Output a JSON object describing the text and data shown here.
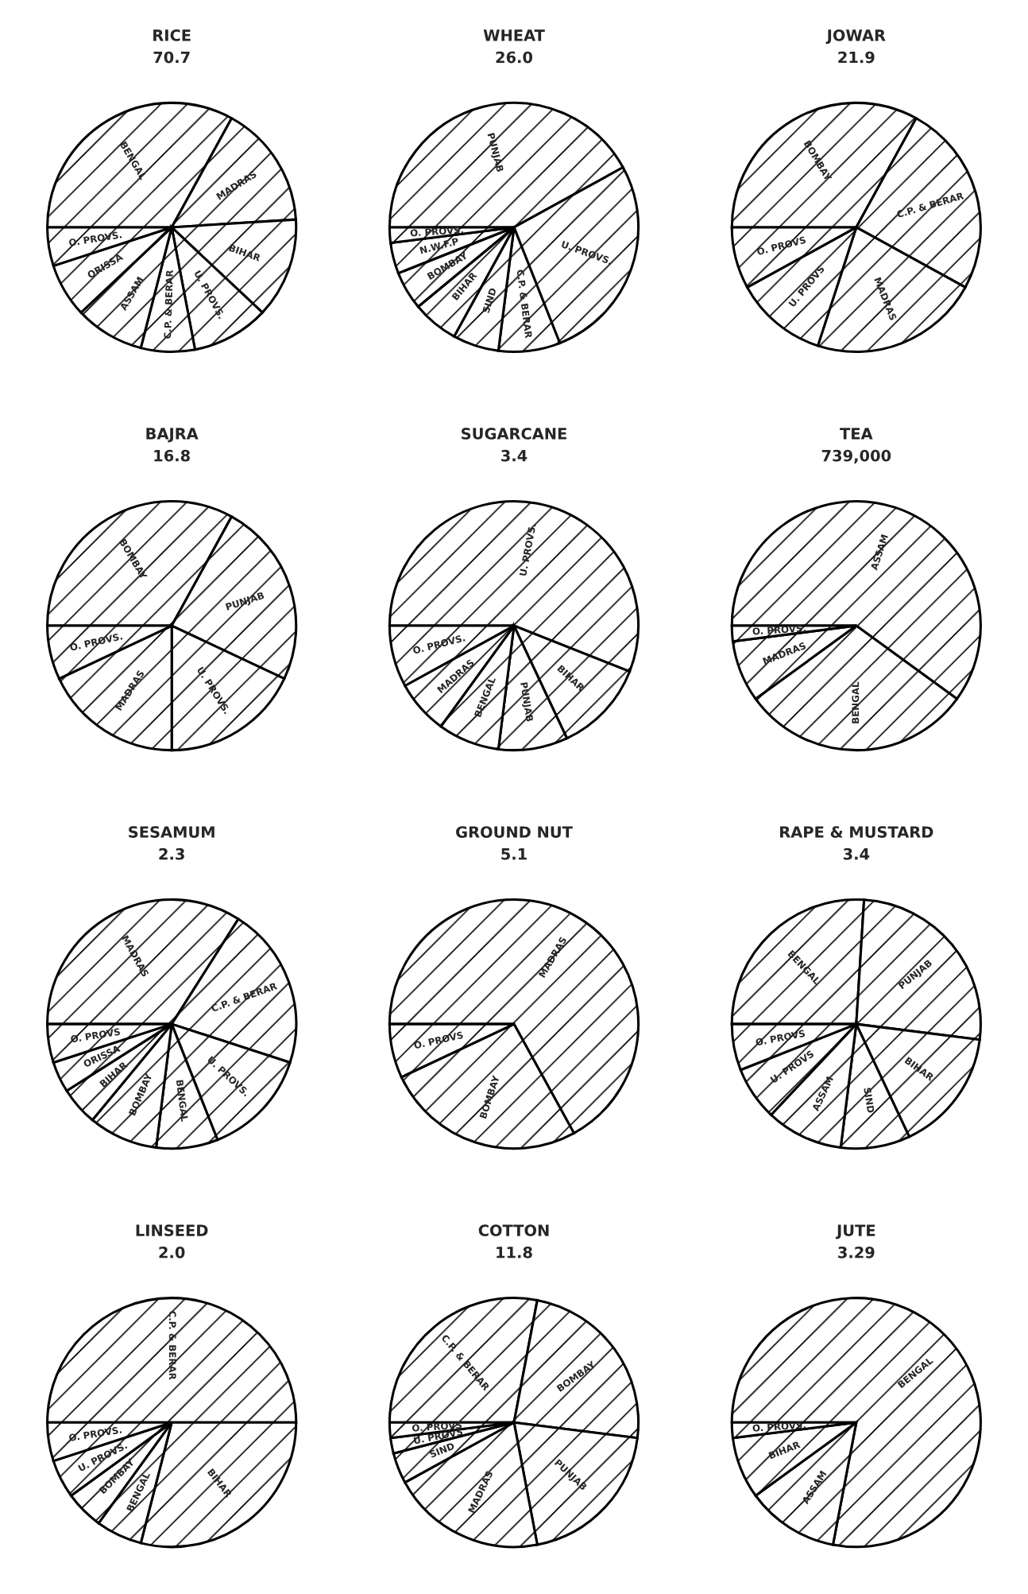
{
  "chart_data": [
    {
      "type": "pie",
      "title": "RICE",
      "subtitle": "70.7",
      "categories": [
        "BENGAL",
        "MADRAS",
        "BIHAR",
        "U. PROVS.",
        "C.P. & BERAR",
        "ASSAM",
        "ORISSA",
        "O. PROVS."
      ],
      "values": [
        33,
        16,
        13,
        10,
        7,
        9,
        7,
        5
      ]
    },
    {
      "type": "pie",
      "title": "WHEAT",
      "subtitle": "26.0",
      "categories": [
        "PUNJAB",
        "U. PROVS.",
        "C.P. & BERAR",
        "SIND",
        "BIHAR",
        "BOMBAY",
        "N.W.F.P",
        "O. PROVS."
      ],
      "values": [
        42,
        27,
        8,
        6,
        6,
        5,
        4,
        2
      ]
    },
    {
      "type": "pie",
      "title": "JOWAR",
      "subtitle": "21.9",
      "categories": [
        "BOMBAY",
        "C.P. & BERAR",
        "MADRAS",
        "U. PROVS",
        "O. PROVS"
      ],
      "values": [
        33,
        25,
        22,
        12,
        8
      ]
    },
    {
      "type": "pie",
      "title": "BAJRA",
      "subtitle": "16.8",
      "categories": [
        "BOMBAY",
        "PUNJAB",
        "U. PROVS.",
        "MADRAS",
        "O. PROVS."
      ],
      "values": [
        33,
        24,
        18,
        18,
        7
      ]
    },
    {
      "type": "pie",
      "title": "SUGARCANE",
      "subtitle": "3.4",
      "categories": [
        "U. PROVS.",
        "BIHAR",
        "PUNJAB",
        "BENGAL",
        "MADRAS",
        "O. PROVS."
      ],
      "values": [
        56,
        12,
        9,
        8,
        7,
        8
      ]
    },
    {
      "type": "pie",
      "title": "TEA",
      "subtitle": "739,000",
      "categories": [
        "ASSAM",
        "BENGAL",
        "MADRAS",
        "O. PROVS."
      ],
      "values": [
        60,
        30,
        8,
        2
      ]
    },
    {
      "type": "pie",
      "title": "SESAMUM",
      "subtitle": "2.3",
      "categories": [
        "MADRAS",
        "C.P. & BERAR",
        "U. PROVS.",
        "BENGAL",
        "BOMBAY",
        "BIHAR",
        "ORISSA",
        "O. PROVS"
      ],
      "values": [
        34,
        21,
        14,
        8,
        9,
        5,
        4,
        5
      ]
    },
    {
      "type": "pie",
      "title": "GROUND NUT",
      "subtitle": "5.1",
      "categories": [
        "MADRAS",
        "BOMBAY",
        "O. PROVS"
      ],
      "values": [
        67,
        26,
        7
      ]
    },
    {
      "type": "pie",
      "title": "RAPE & MUSTARD",
      "subtitle": "3.4",
      "categories": [
        "BENGAL",
        "PUNJAB",
        "BIHAR",
        "SIND",
        "ASSAM",
        "U. PROVS",
        "O. PROVS"
      ],
      "values": [
        26,
        26,
        16,
        9,
        10,
        7,
        6
      ]
    },
    {
      "type": "pie",
      "title": "LINSEED",
      "subtitle": "2.0",
      "categories": [
        "C.P. & BERAR",
        "BIHAR",
        "BENGAL",
        "BOMBAY",
        "U. PROVS.",
        "O. PROVS."
      ],
      "values": [
        50,
        29,
        6,
        5,
        5,
        5
      ]
    },
    {
      "type": "pie",
      "title": "COTTON",
      "subtitle": "11.8",
      "categories": [
        "C.P. & BERAR",
        "BOMBAY",
        "PUNJAB",
        "MADRAS",
        "SIND",
        "U. PROVS",
        "O. PROVS"
      ],
      "values": [
        28,
        24,
        20,
        20,
        4,
        2,
        2
      ]
    },
    {
      "type": "pie",
      "title": "JUTE",
      "subtitle": "3.29",
      "categories": [
        "BENGAL",
        "ASSAM",
        "BIHAR",
        "O. PROVS."
      ],
      "values": [
        78,
        12,
        8,
        2
      ]
    }
  ]
}
